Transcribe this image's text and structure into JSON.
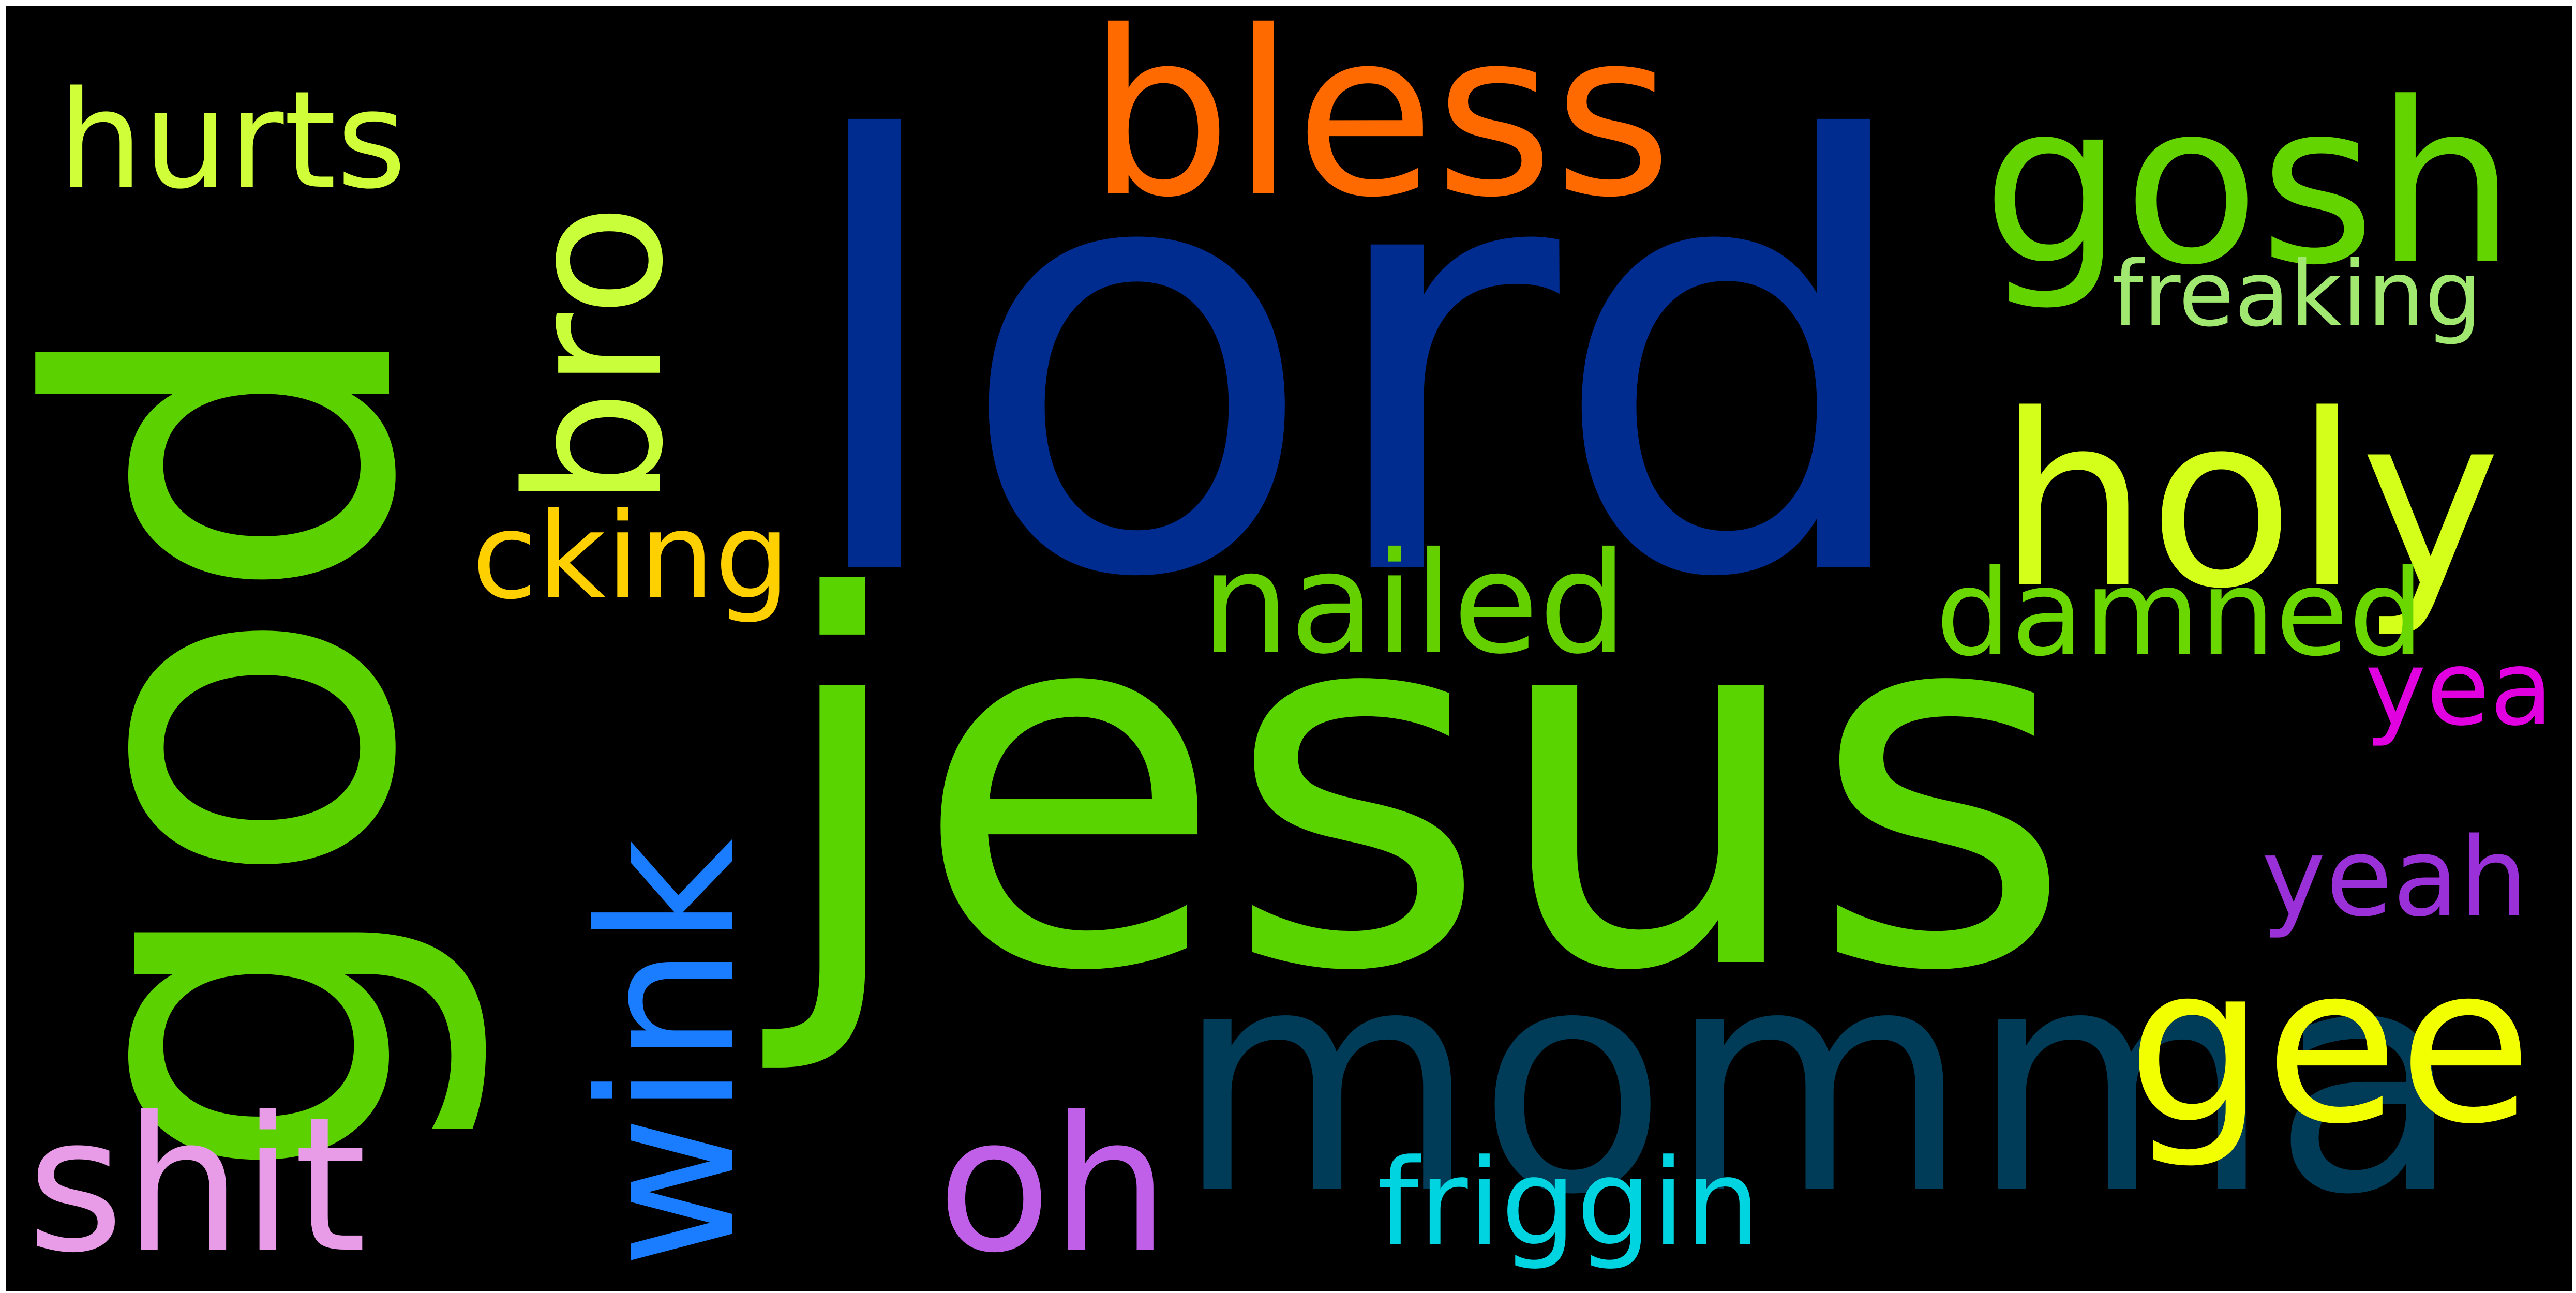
{
  "wordcloud": {
    "background": "#000000",
    "words": [
      {
        "text": "lord",
        "color": "#002b8f"
      },
      {
        "text": "jesus",
        "color": "#5ad400"
      },
      {
        "text": "god",
        "color": "#5cd100"
      },
      {
        "text": "momma",
        "color": "#003b58"
      },
      {
        "text": "bless",
        "color": "#ff6a00"
      },
      {
        "text": "gosh",
        "color": "#64d400"
      },
      {
        "text": "holy",
        "color": "#d4ff1a"
      },
      {
        "text": "bro",
        "color": "#c8ff3a"
      },
      {
        "text": "wink",
        "color": "#1a7cff"
      },
      {
        "text": "gee",
        "color": "#f2ff00"
      },
      {
        "text": "shit",
        "color": "#e89ce8"
      },
      {
        "text": "oh",
        "color": "#c060e8"
      },
      {
        "text": "hurts",
        "color": "#d0ff3a"
      },
      {
        "text": "nailed",
        "color": "#64d000"
      },
      {
        "text": "damned",
        "color": "#6ad800"
      },
      {
        "text": "cking",
        "color": "#ffd000"
      },
      {
        "text": "freaking",
        "color": "#a0e870"
      },
      {
        "text": "yea",
        "color": "#e000e0"
      },
      {
        "text": "yeah",
        "color": "#9a30d8"
      },
      {
        "text": "friggin",
        "color": "#00d4e0"
      }
    ]
  }
}
